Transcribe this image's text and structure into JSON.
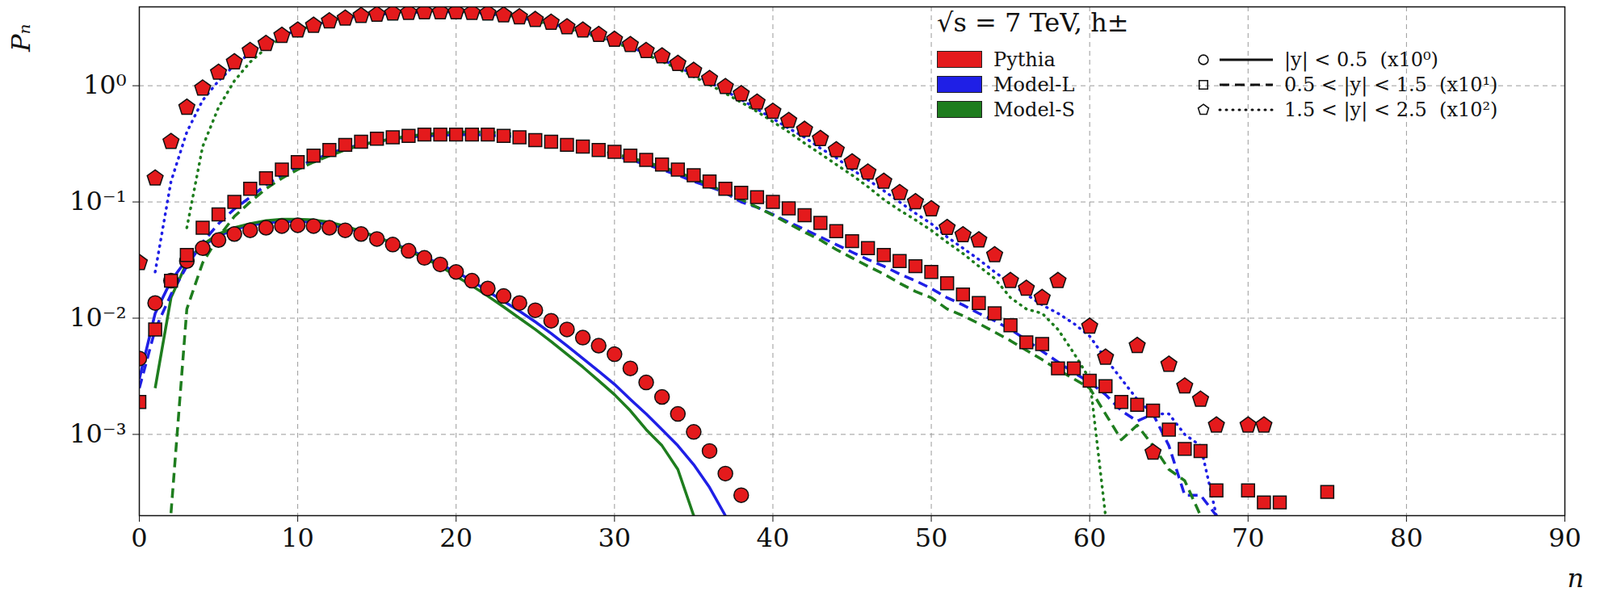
{
  "chart_data": {
    "type": "line",
    "title": "√s = 7 TeV, h±",
    "x_label": "n",
    "y_label": "Pₙ",
    "log": "y",
    "grid": true,
    "legend": "upper right",
    "xlim": [
      0,
      90
    ],
    "xticks": [
      0,
      10,
      20,
      30,
      40,
      50,
      60,
      70,
      80,
      90
    ],
    "ylim": [
      0.0002,
      4.77
    ],
    "yticks": [
      {
        "value": 0.001,
        "label": "10⁻³"
      },
      {
        "value": 0.01,
        "label": "10⁻²"
      },
      {
        "value": 0.1,
        "label": "10⁻¹"
      },
      {
        "value": 1,
        "label": "10⁰"
      }
    ],
    "models": [
      {
        "name": "Pythia",
        "color": "#e41a1c"
      },
      {
        "name": "Model-L",
        "color": "#1f1fe6"
      },
      {
        "name": "Model-S",
        "color": "#1e7d1e"
      }
    ],
    "bins": [
      {
        "name": "|y| < 0.5  (x10⁰)",
        "marker": "circle",
        "line_style": "solid"
      },
      {
        "name": "0.5 < |y| < 1.5  (x10¹)",
        "marker": "square",
        "line_style": "dashed"
      },
      {
        "name": "1.5 < |y| < 2.5  (x10²)",
        "marker": "pentagon",
        "line_style": "dotted"
      }
    ],
    "series": [
      {
        "model": "Model-L",
        "bin": "|y| < 0.5  (x10⁰)",
        "type": "line",
        "color": "#1f1fe6",
        "line_style": "solid",
        "x": [
          0,
          1,
          2,
          3,
          4,
          5,
          6,
          7,
          8,
          9,
          10,
          11,
          12,
          13,
          14,
          15,
          16,
          17,
          18,
          19,
          20,
          21,
          22,
          23,
          24,
          25,
          26,
          27,
          28,
          29,
          30,
          31,
          32,
          33,
          34,
          35,
          36,
          37
        ],
        "values": [
          0.003,
          0.011,
          0.021,
          0.032,
          0.042,
          0.051,
          0.058,
          0.063,
          0.066,
          0.068,
          0.068,
          0.067,
          0.064,
          0.06,
          0.055,
          0.05,
          0.044,
          0.039,
          0.034,
          0.029,
          0.025,
          0.021,
          0.017,
          0.014,
          0.0115,
          0.0093,
          0.0074,
          0.0058,
          0.0045,
          0.0035,
          0.0027,
          0.002,
          0.0015,
          0.0011,
          0.0008,
          0.00055,
          0.00035,
          0.0002
        ]
      },
      {
        "model": "Model-S",
        "bin": "|y| < 0.5  (x10⁰)",
        "type": "line",
        "color": "#1e7d1e",
        "line_style": "solid",
        "x": [
          1,
          2,
          3,
          4,
          5,
          6,
          7,
          8,
          9,
          10,
          11,
          12,
          13,
          14,
          15,
          16,
          17,
          18,
          19,
          20,
          21,
          22,
          23,
          24,
          25,
          26,
          27,
          28,
          29,
          30,
          31,
          32,
          33,
          34,
          35
        ],
        "values": [
          0.0025,
          0.015,
          0.03,
          0.043,
          0.053,
          0.06,
          0.065,
          0.069,
          0.071,
          0.071,
          0.07,
          0.067,
          0.062,
          0.056,
          0.05,
          0.044,
          0.038,
          0.033,
          0.028,
          0.023,
          0.019,
          0.0155,
          0.0125,
          0.01,
          0.008,
          0.0063,
          0.0049,
          0.0038,
          0.0029,
          0.0022,
          0.0016,
          0.0011,
          0.0008,
          0.0005,
          0.0002
        ]
      },
      {
        "model": "Model-L",
        "bin": "0.5 < |y| < 1.5  (x10¹)",
        "type": "line",
        "color": "#1f1fe6",
        "line_style": "dashed",
        "x": [
          0,
          1,
          2,
          3,
          4,
          5,
          6,
          7,
          8,
          9,
          10,
          11,
          12,
          13,
          14,
          15,
          16,
          17,
          18,
          19,
          20,
          21,
          22,
          23,
          24,
          25,
          26,
          27,
          28,
          29,
          30,
          31,
          32,
          33,
          34,
          35,
          36,
          37,
          38,
          39,
          40,
          41,
          42,
          43,
          44,
          45,
          46,
          47,
          48,
          49,
          50,
          51,
          52,
          53,
          54,
          55,
          56,
          57,
          58,
          59,
          60,
          61,
          62,
          63,
          64,
          65,
          66,
          67,
          68
        ],
        "values": [
          0.0025,
          0.008,
          0.016,
          0.028,
          0.045,
          0.065,
          0.087,
          0.11,
          0.14,
          0.17,
          0.2,
          0.23,
          0.26,
          0.29,
          0.31,
          0.33,
          0.35,
          0.36,
          0.37,
          0.375,
          0.38,
          0.38,
          0.375,
          0.37,
          0.36,
          0.34,
          0.33,
          0.31,
          0.29,
          0.27,
          0.25,
          0.23,
          0.21,
          0.19,
          0.17,
          0.15,
          0.135,
          0.12,
          0.1,
          0.09,
          0.078,
          0.067,
          0.058,
          0.05,
          0.043,
          0.037,
          0.032,
          0.028,
          0.024,
          0.021,
          0.018,
          0.015,
          0.013,
          0.011,
          0.0095,
          0.008,
          0.0065,
          0.0052,
          0.0042,
          0.0034,
          0.0028,
          0.0022,
          0.0016,
          0.0013,
          0.0015,
          0.0008,
          0.0003,
          0.0003,
          0.0002
        ]
      },
      {
        "model": "Model-S",
        "bin": "0.5 < |y| < 1.5  (x10¹)",
        "type": "line",
        "color": "#1e7d1e",
        "line_style": "dashed",
        "x": [
          2,
          3,
          4,
          5,
          6,
          7,
          8,
          9,
          10,
          11,
          12,
          13,
          14,
          15,
          16,
          17,
          18,
          19,
          20,
          21,
          22,
          23,
          24,
          25,
          26,
          27,
          28,
          29,
          30,
          31,
          32,
          33,
          34,
          35,
          36,
          37,
          38,
          39,
          40,
          41,
          42,
          43,
          44,
          45,
          46,
          47,
          48,
          49,
          50,
          51,
          52,
          53,
          54,
          55,
          56,
          57,
          58,
          59,
          60,
          61,
          62,
          63,
          64,
          65,
          66,
          67
        ],
        "values": [
          0.00021,
          0.012,
          0.03,
          0.05,
          0.075,
          0.1,
          0.13,
          0.16,
          0.19,
          0.22,
          0.25,
          0.28,
          0.31,
          0.33,
          0.35,
          0.37,
          0.38,
          0.39,
          0.4,
          0.4,
          0.4,
          0.39,
          0.38,
          0.36,
          0.34,
          0.32,
          0.3,
          0.28,
          0.26,
          0.24,
          0.22,
          0.2,
          0.18,
          0.16,
          0.14,
          0.12,
          0.105,
          0.09,
          0.077,
          0.065,
          0.055,
          0.047,
          0.039,
          0.033,
          0.028,
          0.024,
          0.02,
          0.017,
          0.015,
          0.012,
          0.0105,
          0.009,
          0.0076,
          0.0064,
          0.0053,
          0.0044,
          0.0036,
          0.003,
          0.0025,
          0.0015,
          0.0009,
          0.0012,
          0.0008,
          0.0005,
          0.0004,
          0.0002
        ]
      },
      {
        "model": "Model-L",
        "bin": "1.5 < |y| < 2.5  (x10²)",
        "type": "line",
        "color": "#1f1fe6",
        "line_style": "dotted",
        "x": [
          1,
          2,
          3,
          4,
          5,
          6,
          7,
          8,
          9,
          10,
          11,
          12,
          13,
          14,
          15,
          16,
          17,
          18,
          19,
          20,
          21,
          22,
          23,
          24,
          25,
          26,
          27,
          28,
          29,
          30,
          31,
          32,
          33,
          34,
          35,
          36,
          37,
          38,
          39,
          40,
          41,
          42,
          43,
          44,
          45,
          46,
          47,
          48,
          49,
          50,
          51,
          52,
          53,
          54,
          55,
          56,
          57,
          58,
          59,
          60,
          61,
          62,
          63,
          64,
          65,
          66,
          67,
          68
        ],
        "values": [
          0.025,
          0.15,
          0.4,
          0.75,
          1.1,
          1.5,
          1.9,
          2.3,
          2.7,
          3.0,
          3.3,
          3.6,
          3.8,
          4.0,
          4.1,
          4.2,
          4.25,
          4.3,
          4.3,
          4.3,
          4.25,
          4.15,
          4.0,
          3.85,
          3.6,
          3.4,
          3.15,
          2.9,
          2.65,
          2.4,
          2.15,
          1.9,
          1.68,
          1.45,
          1.25,
          1.07,
          0.9,
          0.76,
          0.63,
          0.52,
          0.43,
          0.36,
          0.29,
          0.24,
          0.19,
          0.155,
          0.125,
          0.1,
          0.08,
          0.065,
          0.05,
          0.04,
          0.032,
          0.025,
          0.02,
          0.016,
          0.013,
          0.011,
          0.009,
          0.007,
          0.0045,
          0.003,
          0.002,
          0.0015,
          0.0015,
          0.001,
          0.0008,
          0.0002
        ]
      },
      {
        "model": "Model-S",
        "bin": "1.5 < |y| < 2.5  (x10²)",
        "type": "line",
        "color": "#1e7d1e",
        "line_style": "dotted",
        "x": [
          3,
          4,
          5,
          6,
          7,
          8,
          9,
          10,
          11,
          12,
          13,
          14,
          15,
          16,
          17,
          18,
          19,
          20,
          21,
          22,
          23,
          24,
          25,
          26,
          27,
          28,
          29,
          30,
          31,
          32,
          33,
          34,
          35,
          36,
          37,
          38,
          39,
          40,
          41,
          42,
          43,
          44,
          45,
          46,
          47,
          48,
          49,
          50,
          51,
          52,
          53,
          54,
          55,
          56,
          57,
          58,
          59,
          60,
          61
        ],
        "values": [
          0.06,
          0.3,
          0.65,
          1.1,
          1.6,
          2.1,
          2.6,
          3.0,
          3.3,
          3.6,
          3.85,
          4.05,
          4.2,
          4.3,
          4.35,
          4.4,
          4.4,
          4.35,
          4.3,
          4.2,
          4.05,
          3.85,
          3.6,
          3.35,
          3.1,
          2.85,
          2.6,
          2.35,
          2.1,
          1.85,
          1.62,
          1.4,
          1.2,
          1.02,
          0.86,
          0.72,
          0.6,
          0.49,
          0.4,
          0.32,
          0.26,
          0.21,
          0.17,
          0.135,
          0.105,
          0.085,
          0.07,
          0.057,
          0.045,
          0.036,
          0.028,
          0.022,
          0.015,
          0.012,
          0.011,
          0.008,
          0.005,
          0.003,
          0.0002
        ]
      },
      {
        "model": "Pythia",
        "bin": "|y| < 0.5  (x10⁰)",
        "type": "scatter",
        "color": "#e41a1c",
        "marker": "circle",
        "x": [
          0,
          1,
          2,
          3,
          4,
          5,
          6,
          7,
          8,
          9,
          10,
          11,
          12,
          13,
          14,
          15,
          16,
          17,
          18,
          19,
          20,
          21,
          22,
          23,
          24,
          25,
          26,
          27,
          28,
          29,
          30,
          31,
          32,
          33,
          34,
          35,
          36,
          37,
          38
        ],
        "values": [
          0.0045,
          0.0135,
          0.021,
          0.031,
          0.04,
          0.047,
          0.053,
          0.057,
          0.06,
          0.062,
          0.063,
          0.062,
          0.06,
          0.057,
          0.053,
          0.048,
          0.043,
          0.038,
          0.033,
          0.029,
          0.025,
          0.021,
          0.018,
          0.0155,
          0.0135,
          0.0117,
          0.0095,
          0.008,
          0.0068,
          0.0058,
          0.0049,
          0.0037,
          0.0028,
          0.0021,
          0.0015,
          0.00105,
          0.00072,
          0.00046,
          0.0003
        ]
      },
      {
        "model": "Pythia",
        "bin": "0.5 < |y| < 1.5  (x10¹)",
        "type": "scatter",
        "color": "#e41a1c",
        "marker": "square",
        "x": [
          0,
          1,
          2,
          3,
          4,
          5,
          6,
          7,
          8,
          9,
          10,
          11,
          12,
          13,
          14,
          15,
          16,
          17,
          18,
          19,
          20,
          21,
          22,
          23,
          24,
          25,
          26,
          27,
          28,
          29,
          30,
          31,
          32,
          33,
          34,
          35,
          36,
          37,
          38,
          39,
          40,
          41,
          42,
          43,
          44,
          45,
          46,
          47,
          48,
          49,
          50,
          51,
          52,
          53,
          54,
          55,
          56,
          57,
          58,
          59,
          60,
          61,
          62,
          63,
          64,
          65,
          66,
          67,
          68,
          70,
          71,
          72,
          75
        ],
        "values": [
          0.0019,
          0.008,
          0.021,
          0.035,
          0.06,
          0.078,
          0.1,
          0.13,
          0.16,
          0.19,
          0.22,
          0.25,
          0.28,
          0.31,
          0.33,
          0.35,
          0.36,
          0.37,
          0.38,
          0.38,
          0.38,
          0.38,
          0.38,
          0.37,
          0.36,
          0.34,
          0.33,
          0.31,
          0.3,
          0.28,
          0.27,
          0.25,
          0.23,
          0.21,
          0.19,
          0.17,
          0.15,
          0.13,
          0.12,
          0.11,
          0.1,
          0.088,
          0.077,
          0.066,
          0.056,
          0.046,
          0.04,
          0.035,
          0.031,
          0.028,
          0.025,
          0.02,
          0.016,
          0.0135,
          0.011,
          0.0087,
          0.0062,
          0.006,
          0.0037,
          0.0037,
          0.0029,
          0.0026,
          0.0019,
          0.0018,
          0.0016,
          0.0011,
          0.00075,
          0.00072,
          0.00033,
          0.00033,
          0.00026,
          0.00026,
          0.00032
        ]
      },
      {
        "model": "Pythia",
        "bin": "1.5 < |y| < 2.5  (x10²)",
        "type": "scatter",
        "color": "#e41a1c",
        "marker": "pentagon",
        "x": [
          0,
          1,
          2,
          3,
          4,
          5,
          6,
          7,
          8,
          9,
          10,
          11,
          12,
          13,
          14,
          15,
          16,
          17,
          18,
          19,
          20,
          21,
          22,
          23,
          24,
          25,
          26,
          27,
          28,
          29,
          30,
          31,
          32,
          33,
          34,
          35,
          36,
          37,
          38,
          39,
          40,
          41,
          42,
          43,
          44,
          45,
          46,
          47,
          48,
          49,
          50,
          51,
          52,
          53,
          54,
          55,
          56,
          57,
          58,
          60,
          61,
          63,
          64,
          65,
          66,
          67,
          68,
          70,
          71
        ],
        "values": [
          0.03,
          0.16,
          0.33,
          0.65,
          0.95,
          1.3,
          1.6,
          2.0,
          2.3,
          2.7,
          3.0,
          3.3,
          3.6,
          3.8,
          4.0,
          4.1,
          4.2,
          4.25,
          4.3,
          4.3,
          4.3,
          4.25,
          4.2,
          4.05,
          3.9,
          3.7,
          3.5,
          3.2,
          3.0,
          2.75,
          2.5,
          2.25,
          2.0,
          1.8,
          1.55,
          1.35,
          1.15,
          0.98,
          0.85,
          0.72,
          0.6,
          0.5,
          0.42,
          0.35,
          0.28,
          0.22,
          0.18,
          0.15,
          0.12,
          0.1,
          0.087,
          0.06,
          0.052,
          0.047,
          0.035,
          0.021,
          0.018,
          0.015,
          0.021,
          0.0085,
          0.0046,
          0.0058,
          0.0007,
          0.004,
          0.0026,
          0.002,
          0.0012,
          0.0012,
          0.0012
        ]
      }
    ]
  }
}
